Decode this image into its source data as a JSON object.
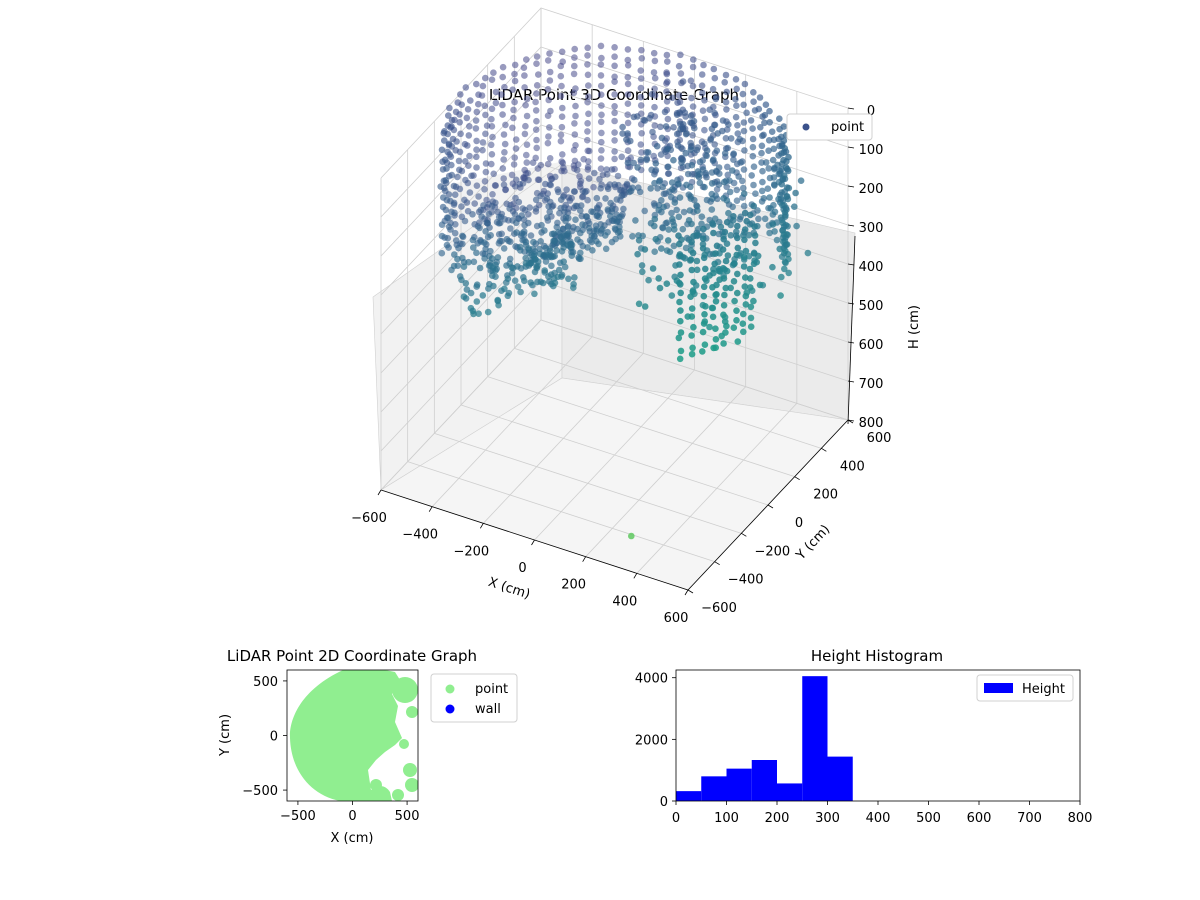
{
  "chart_data": [
    {
      "type": "scatter",
      "title": "LiDAR Point 3D Coordinate Graph",
      "xlabel": "X (cm)",
      "ylabel": "Y (cm)",
      "zlabel": "H (cm)",
      "xlim": [
        -600,
        600
      ],
      "ylim": [
        -600,
        600
      ],
      "zlim": [
        0,
        800
      ],
      "z_inverted": true,
      "x_ticks": [
        "−600",
        "−400",
        "−200",
        "0",
        "200",
        "400",
        "600"
      ],
      "y_ticks": [
        "−600",
        "−400",
        "−200",
        "0",
        "200",
        "400",
        "600"
      ],
      "z_ticks": [
        "0",
        "100",
        "200",
        "300",
        "400",
        "500",
        "600",
        "700",
        "800"
      ],
      "legend": {
        "placement": "top-right",
        "entries": [
          "point"
        ]
      },
      "grid": true,
      "colormap": "viridis",
      "series": [
        {
          "name": "point",
          "color": "#3b528b",
          "description_shape": "partial cylindrical wall of radius ~600 cm, heights ~0-350 cm",
          "wall_radius": 600,
          "wall_arc_deg": [
            -40,
            200
          ],
          "height_range": [
            0,
            350
          ]
        }
      ]
    },
    {
      "type": "scatter",
      "title": "LiDAR Point 2D Coordinate Graph",
      "xlabel": "X (cm)",
      "ylabel": "Y (cm)",
      "xlim": [
        -600,
        600
      ],
      "ylim": [
        -600,
        600
      ],
      "x_ticks": [
        "−500",
        "0",
        "500"
      ],
      "y_ticks": [
        "−500",
        "0",
        "500"
      ],
      "legend": {
        "placement": "outside-right",
        "entries": [
          "point",
          "wall"
        ]
      },
      "series": [
        {
          "name": "point",
          "color": "#90ee90"
        },
        {
          "name": "wall",
          "color": "#0000ff"
        }
      ]
    },
    {
      "type": "bar",
      "title": "Height Histogram",
      "bins": [
        [
          0,
          50
        ],
        [
          50,
          100
        ],
        [
          100,
          150
        ],
        [
          150,
          200
        ],
        [
          200,
          250
        ],
        [
          250,
          300
        ],
        [
          300,
          350
        ],
        [
          350,
          400
        ],
        [
          400,
          450
        ],
        [
          450,
          500
        ],
        [
          500,
          550
        ],
        [
          550,
          600
        ],
        [
          600,
          650
        ],
        [
          650,
          700
        ],
        [
          700,
          750
        ],
        [
          750,
          800
        ]
      ],
      "values": [
        320,
        800,
        1050,
        1330,
        570,
        4050,
        1440,
        0,
        0,
        0,
        0,
        0,
        0,
        0,
        0,
        0
      ],
      "xlim": [
        0,
        800
      ],
      "ylim": [
        0,
        4250
      ],
      "x_ticks": [
        "0",
        "100",
        "200",
        "300",
        "400",
        "500",
        "600",
        "700",
        "800"
      ],
      "y_ticks": [
        "0",
        "2000",
        "4000"
      ],
      "legend": {
        "placement": "top-right",
        "entries": [
          "Height"
        ]
      },
      "series": [
        {
          "name": "Height",
          "color": "#0000ff"
        }
      ]
    }
  ]
}
